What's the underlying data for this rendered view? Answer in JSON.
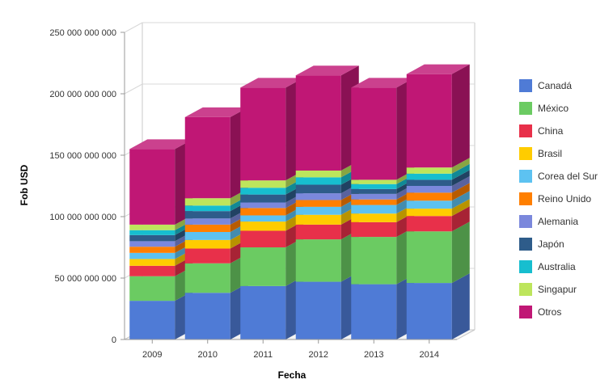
{
  "chart_data": {
    "type": "bar",
    "stacked": true,
    "three_d": true,
    "title": "",
    "xlabel": "Fecha",
    "ylabel": "Fob USD",
    "ylim": [
      0,
      250000000000
    ],
    "y_ticks": [
      0,
      50000000000,
      100000000000,
      150000000000,
      200000000000,
      250000000000
    ],
    "y_tick_labels": [
      "0",
      "50 000 000 000",
      "100 000 000 000",
      "150 000 000 000",
      "200 000 000 000",
      "250 000 000 000"
    ],
    "grid": true,
    "legend_position": "right",
    "categories": [
      "2009",
      "2010",
      "2011",
      "2012",
      "2013",
      "2014"
    ],
    "series": [
      {
        "name": "Canadá",
        "color": "#4f7bd6",
        "values": [
          31500000000,
          38000000000,
          43500000000,
          47000000000,
          45000000000,
          46000000000
        ]
      },
      {
        "name": "México",
        "color": "#6bcb62",
        "values": [
          20000000000,
          24000000000,
          31500000000,
          34500000000,
          38500000000,
          42000000000
        ]
      },
      {
        "name": "China",
        "color": "#e8304a",
        "values": [
          8500000000,
          12000000000,
          13500000000,
          12000000000,
          12000000000,
          12500000000
        ]
      },
      {
        "name": "Brasil",
        "color": "#ffcc00",
        "values": [
          5500000000,
          7000000000,
          7500000000,
          8000000000,
          7000000000,
          6000000000
        ]
      },
      {
        "name": "Corea del Sur",
        "color": "#5dc2f1",
        "values": [
          5000000000,
          6500000000,
          5000000000,
          6500000000,
          7000000000,
          6500000000
        ]
      },
      {
        "name": "Reino Unido",
        "color": "#ff7f00",
        "values": [
          5000000000,
          6000000000,
          6000000000,
          5500000000,
          4500000000,
          6500000000
        ]
      },
      {
        "name": "Alemania",
        "color": "#7b88dc",
        "values": [
          4500000000,
          5000000000,
          4500000000,
          5500000000,
          4500000000,
          5500000000
        ]
      },
      {
        "name": "Japón",
        "color": "#2e5c8a",
        "values": [
          5000000000,
          6000000000,
          6500000000,
          7000000000,
          4000000000,
          5000000000
        ]
      },
      {
        "name": "Australia",
        "color": "#17becf",
        "values": [
          4000000000,
          4500000000,
          5500000000,
          6000000000,
          4000000000,
          5000000000
        ]
      },
      {
        "name": "Singapur",
        "color": "#bde55c",
        "values": [
          4500000000,
          6000000000,
          6000000000,
          5500000000,
          3500000000,
          5000000000
        ]
      },
      {
        "name": "Otros",
        "color": "#c01775",
        "values": [
          61500000000,
          66000000000,
          75500000000,
          77500000000,
          75000000000,
          76000000000
        ]
      }
    ]
  }
}
